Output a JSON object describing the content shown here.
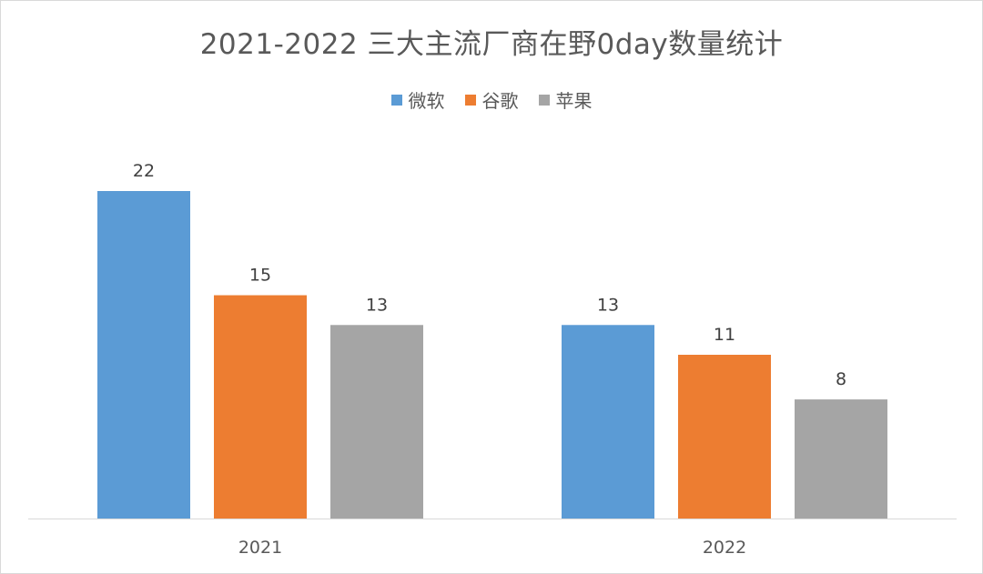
{
  "chart_data": {
    "type": "bar",
    "title": "2021-2022 三大主流厂商在野0day数量统计",
    "categories": [
      "2021",
      "2022"
    ],
    "series": [
      {
        "name": "微软",
        "color": "#5B9BD5",
        "values": [
          22,
          13
        ]
      },
      {
        "name": "谷歌",
        "color": "#ED7D31",
        "values": [
          15,
          11
        ]
      },
      {
        "name": "苹果",
        "color": "#A5A5A5",
        "values": [
          13,
          8
        ]
      }
    ],
    "ylim": [
      0,
      24
    ],
    "grid": false,
    "legend_position": "top-center",
    "data_labels": true
  }
}
